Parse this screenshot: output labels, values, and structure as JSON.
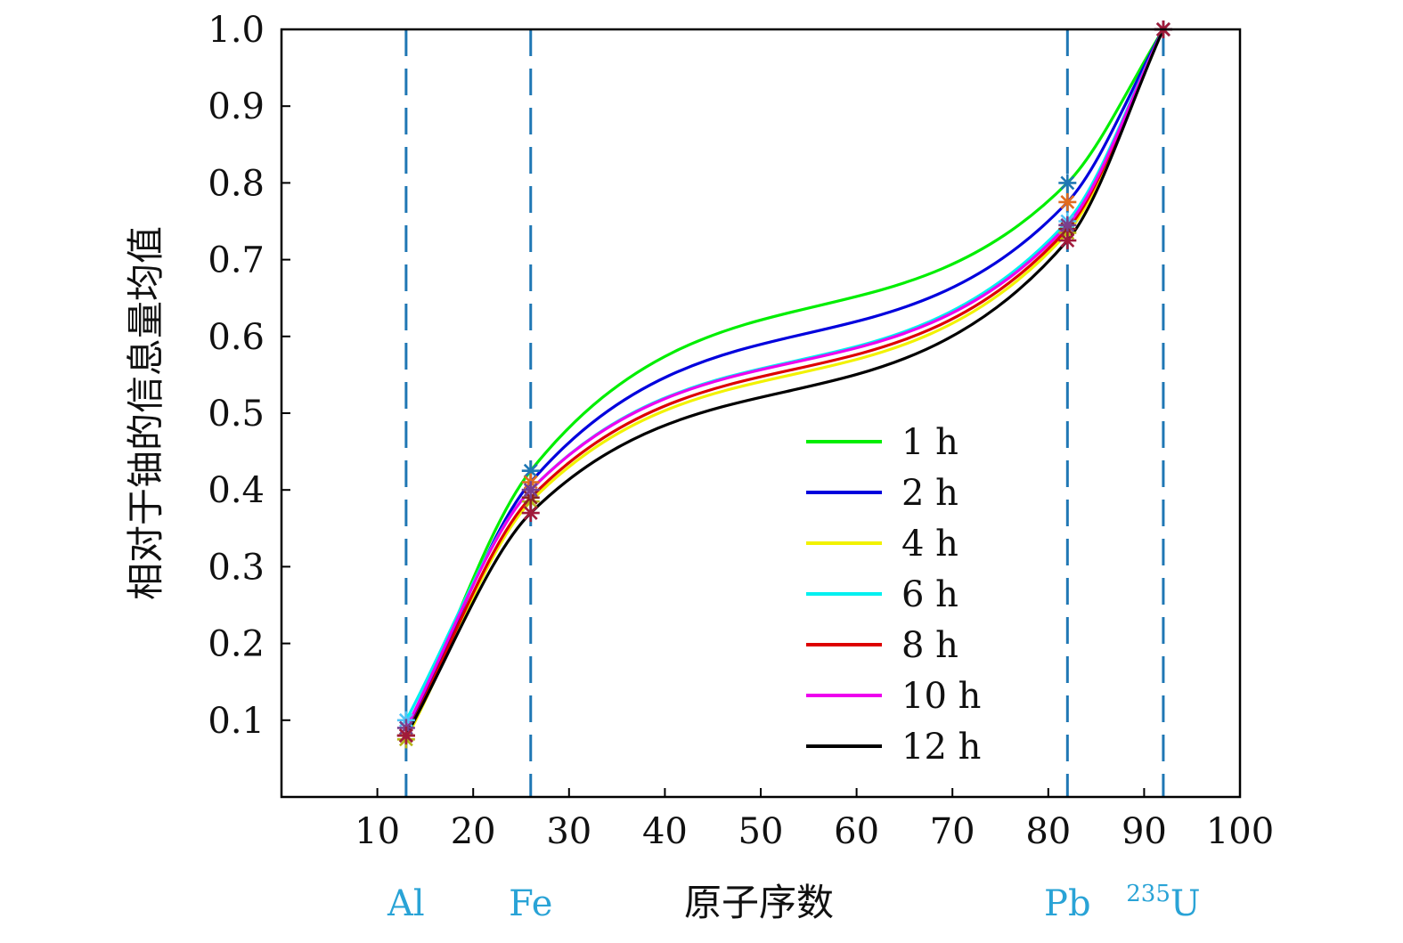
{
  "chart_data": {
    "type": "line",
    "xlabel": "原子序数",
    "ylabel": "相对于铀的信息量均值",
    "xlim": [
      0,
      100
    ],
    "ylim": [
      0,
      1.0
    ],
    "x_ticks": [
      10,
      20,
      30,
      40,
      50,
      60,
      70,
      80,
      90,
      100
    ],
    "x_tick_labels": [
      "10",
      "20",
      "30",
      "40",
      "50",
      "60",
      "70",
      "80",
      "90",
      "100"
    ],
    "y_ticks": [
      0.1,
      0.2,
      0.3,
      0.4,
      0.5,
      0.6,
      0.7,
      0.8,
      0.9,
      1.0
    ],
    "y_tick_labels": [
      "0.1",
      "0.2",
      "0.3",
      "0.4",
      "0.5",
      "0.6",
      "0.7",
      "0.8",
      "0.9",
      "1.0"
    ],
    "legend_position": "center-right",
    "reference_lines": [
      {
        "x": 13,
        "label": "Al",
        "superscript": ""
      },
      {
        "x": 26,
        "label": "Fe",
        "superscript": ""
      },
      {
        "x": 82,
        "label": "Pb",
        "superscript": ""
      },
      {
        "x": 92,
        "label": "U",
        "superscript": "235"
      }
    ],
    "reference_color": "#1f77b4",
    "element_label_color": "#29a3d6",
    "x": [
      13,
      26,
      82,
      92
    ],
    "series": [
      {
        "name": "1 h",
        "color": "#00ee00",
        "values": [
          0.08,
          0.425,
          0.8,
          1.0
        ],
        "marker_color": "#1f77b4"
      },
      {
        "name": "2 h",
        "color": "#0000dd",
        "values": [
          0.08,
          0.41,
          0.775,
          1.0
        ],
        "marker_color": "#e06c1f"
      },
      {
        "name": "4 h",
        "color": "#f2f200",
        "values": [
          0.075,
          0.385,
          0.735,
          1.0
        ],
        "marker_color": "#b5b516"
      },
      {
        "name": "6 h",
        "color": "#00f0f0",
        "values": [
          0.1,
          0.4,
          0.75,
          1.0
        ],
        "marker_color": "#4fc3f7"
      },
      {
        "name": "8 h",
        "color": "#dd0000",
        "values": [
          0.08,
          0.39,
          0.74,
          1.0
        ],
        "marker_color": "#8b2323"
      },
      {
        "name": "10 h",
        "color": "#ee00ee",
        "values": [
          0.09,
          0.4,
          0.745,
          1.0
        ],
        "marker_color": "#7a3f8c"
      },
      {
        "name": "12 h",
        "color": "#000000",
        "values": [
          0.08,
          0.37,
          0.725,
          1.0
        ],
        "marker_color": "#a11a3a"
      }
    ]
  }
}
